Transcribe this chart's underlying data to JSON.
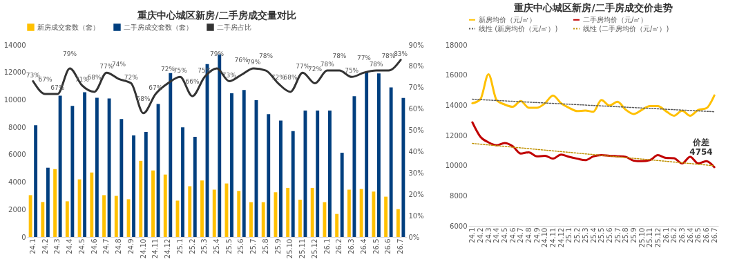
{
  "chart_data": [
    {
      "type": "bar",
      "title": "重庆中心城区新房/二手房成交量对比",
      "legend": "top",
      "categories": [
        "24.1",
        "24.2",
        "24.3",
        "24.4",
        "24.5",
        "24.6",
        "24.7",
        "24.8",
        "24.9",
        "24.10",
        "24.11",
        "24.12",
        "25.1",
        "25.2",
        "25.3",
        "25.4",
        "25.5",
        "25.6",
        "25.7",
        "25.8",
        "25.9",
        "25.10",
        "25.11",
        "25.12",
        "26.1",
        "26.2",
        "26.3",
        "26.4",
        "26.5",
        "26.6",
        "26.7"
      ],
      "ylim": [
        0,
        14000
      ],
      "yticks": [
        0,
        2000,
        4000,
        6000,
        8000,
        10000,
        12000,
        14000
      ],
      "y2lim": [
        0,
        90
      ],
      "y2ticks": [
        {
          "value": 0,
          "label": "0%"
        },
        {
          "value": 10,
          "label": "10%"
        },
        {
          "value": 20,
          "label": "20%"
        },
        {
          "value": 30,
          "label": "30%"
        },
        {
          "value": 40,
          "label": "40%"
        },
        {
          "value": 50,
          "label": "50%"
        },
        {
          "value": 60,
          "label": "60%"
        },
        {
          "value": 70,
          "label": "70%"
        },
        {
          "value": 80,
          "label": "80%"
        },
        {
          "value": 90,
          "label": "90%"
        }
      ],
      "series": [
        {
          "name": "新房成交套数（套）",
          "color": "#ffc000",
          "values": [
            3050,
            2550,
            4950,
            2600,
            4200,
            4700,
            3050,
            3000,
            2750,
            5550,
            4850,
            4550,
            2650,
            3700,
            4120,
            3450,
            3900,
            3360,
            2540,
            2540,
            3260,
            3580,
            2720,
            3580,
            2540,
            1680,
            3450,
            3500,
            3310,
            2940,
            2030
          ]
        },
        {
          "name": "二手房成交套数（套）",
          "color": "#003f7f",
          "values": [
            8150,
            5050,
            10300,
            9550,
            10550,
            10150,
            10100,
            8600,
            7400,
            7650,
            9700,
            11950,
            8000,
            7300,
            12600,
            13310,
            10480,
            10720,
            9970,
            8950,
            8485,
            7720,
            9220,
            9220,
            9220,
            6140,
            10260,
            12000,
            11920,
            10900,
            10130
          ]
        },
        {
          "name": "二手房占比",
          "type": "line",
          "axis": "y2",
          "color": "#333333",
          "values": [
            73,
            67,
            67,
            79,
            71,
            68,
            77,
            74,
            72,
            58,
            67,
            72,
            75,
            66,
            75,
            79,
            73,
            76,
            79,
            78,
            72,
            68,
            77,
            72,
            78,
            78,
            75,
            77,
            78,
            78,
            83
          ],
          "value_labels": [
            "73%",
            "67%",
            "67%",
            "79%",
            "71%",
            "68%",
            "77%",
            "74%",
            "72%",
            "58%",
            "67%",
            "72%",
            "75%",
            "66%",
            "75%",
            "79%",
            "73%",
            "76%",
            "79%",
            "78%",
            "72%",
            "68%",
            "77%",
            "72%",
            "78%",
            "78%",
            "75%",
            "77%",
            "78%",
            "78%",
            "83%"
          ]
        }
      ]
    },
    {
      "type": "line",
      "title": "重庆中心城区新房/二手房成交价走势",
      "legend": "top",
      "categories": [
        "24.1",
        "24.2",
        "24.3",
        "24.4",
        "24.5",
        "24.6",
        "24.7",
        "24.8",
        "24.9",
        "24.10",
        "24.11",
        "24.12",
        "25.1",
        "25.2",
        "25.3",
        "25.4",
        "25.5",
        "25.6",
        "25.7",
        "25.8",
        "25.9",
        "25.10",
        "25.11",
        "25.12",
        "26.1",
        "26.2",
        "26.3",
        "26.4",
        "26.5",
        "26.6",
        "26.7"
      ],
      "ylim": [
        6000,
        18000
      ],
      "yticks": [
        6000,
        8000,
        10000,
        12000,
        14000,
        16000,
        18000
      ],
      "annotations": [
        "价差\n4754"
      ],
      "series": [
        {
          "name": "新房均价（元/㎡）",
          "color": "#ffc000",
          "values": [
            14130,
            14400,
            16050,
            14350,
            14050,
            13900,
            14280,
            13830,
            13830,
            14130,
            14640,
            14130,
            13830,
            13610,
            13650,
            13570,
            14350,
            13980,
            14230,
            13710,
            13420,
            13690,
            13950,
            13950,
            13610,
            13310,
            13640,
            13310,
            13690,
            13800,
            14650
          ]
        },
        {
          "name": "二手房均价（元/㎡）",
          "color": "#c00000",
          "values": [
            12870,
            11910,
            11540,
            11350,
            11500,
            11290,
            10800,
            10880,
            10610,
            10650,
            10460,
            10730,
            10580,
            10460,
            10360,
            10610,
            10700,
            10650,
            10620,
            10580,
            10330,
            10290,
            10360,
            10690,
            10510,
            10490,
            10140,
            10580,
            10140,
            10290,
            9896
          ]
        },
        {
          "name": "线性 (新房均价（元/㎡）)",
          "color": "#595959",
          "line_style": "dotted",
          "x": [
            "24.1",
            "26.7"
          ],
          "values": [
            14400,
            13570
          ]
        },
        {
          "name": "线性 (二手房均价（元/㎡）)",
          "color": "#bf9000",
          "line_style": "dotted",
          "x": [
            "24.1",
            "26.7"
          ],
          "values": [
            11470,
            9990
          ]
        }
      ]
    }
  ]
}
